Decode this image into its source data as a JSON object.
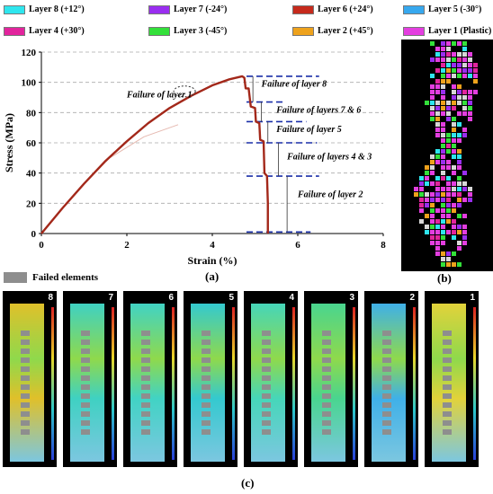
{
  "legend": [
    {
      "label": "Layer 8 (+12°)",
      "color": "#2fe6ee"
    },
    {
      "label": "Layer 7 (-24°)",
      "color": "#9a2ef0"
    },
    {
      "label": "Layer 6 (+24°)",
      "color": "#c62a1c"
    },
    {
      "label": "Layer 5 (-30°)",
      "color": "#37a8ee"
    },
    {
      "label": "Layer 4 (+30°)",
      "color": "#e2249d"
    },
    {
      "label": "Layer 3 (-45°)",
      "color": "#33e03a"
    },
    {
      "label": "Layer 2 (+45°)",
      "color": "#eea21c"
    },
    {
      "label": "Layer 1 (Plastic)",
      "color": "#e43ee0"
    }
  ],
  "chart_data": {
    "type": "line",
    "xlabel": "Strain (%)",
    "ylabel": "Stress (MPa)",
    "xlim": [
      0,
      8
    ],
    "ylim": [
      0,
      120
    ],
    "xticks": [
      "0",
      "2",
      "4",
      "6",
      "8"
    ],
    "yticks": [
      "0",
      "20",
      "40",
      "60",
      "80",
      "100",
      "120"
    ],
    "grid": "horizontal-dashed",
    "series": [
      {
        "color": "#a3281a",
        "x": [
          0,
          0.5,
          1.0,
          1.5,
          2.0,
          2.5,
          3.0,
          3.5,
          4.0,
          4.4,
          4.7,
          4.75,
          4.78,
          4.85,
          4.9,
          5.0,
          5.02,
          5.1,
          5.12,
          5.2,
          5.22,
          5.28,
          5.3,
          5.3
        ],
        "y": [
          0,
          17,
          33,
          48,
          61,
          73,
          83,
          91,
          98,
          102,
          104,
          103,
          96,
          96,
          84,
          83,
          74,
          73,
          62,
          61,
          40,
          38,
          20,
          0
        ]
      }
    ],
    "level_lines": [
      104,
      87,
      74,
      60,
      38,
      1
    ],
    "annotations": [
      {
        "text": "Failure of layer 1",
        "x": 2.0,
        "y": 90
      },
      {
        "text": "Failure of layer 8",
        "x": 5.15,
        "y": 97
      },
      {
        "text": "Failure of layers 7 & 6",
        "x": 5.5,
        "y": 80
      },
      {
        "text": "Failure of layer 5",
        "x": 5.5,
        "y": 67
      },
      {
        "text": "Failure of layers 4 & 3",
        "x": 5.75,
        "y": 49
      },
      {
        "text": "Failure of layer 2",
        "x": 6.0,
        "y": 24
      }
    ]
  },
  "labels": {
    "a": "(a)",
    "b": "(b)",
    "c": "(c)",
    "failed": "Failed elements"
  },
  "panels": [
    {
      "num": "8",
      "bg": "#e0c02a"
    },
    {
      "num": "7",
      "bg": "#3fd1c2"
    },
    {
      "num": "6",
      "bg": "#41d3c4"
    },
    {
      "num": "5",
      "bg": "#34c9cf"
    },
    {
      "num": "4",
      "bg": "#46d6b9"
    },
    {
      "num": "3",
      "bg": "#49d58f"
    },
    {
      "num": "2",
      "bg": "#3fb0e8"
    },
    {
      "num": "1",
      "bg": "#e2d23a"
    }
  ]
}
